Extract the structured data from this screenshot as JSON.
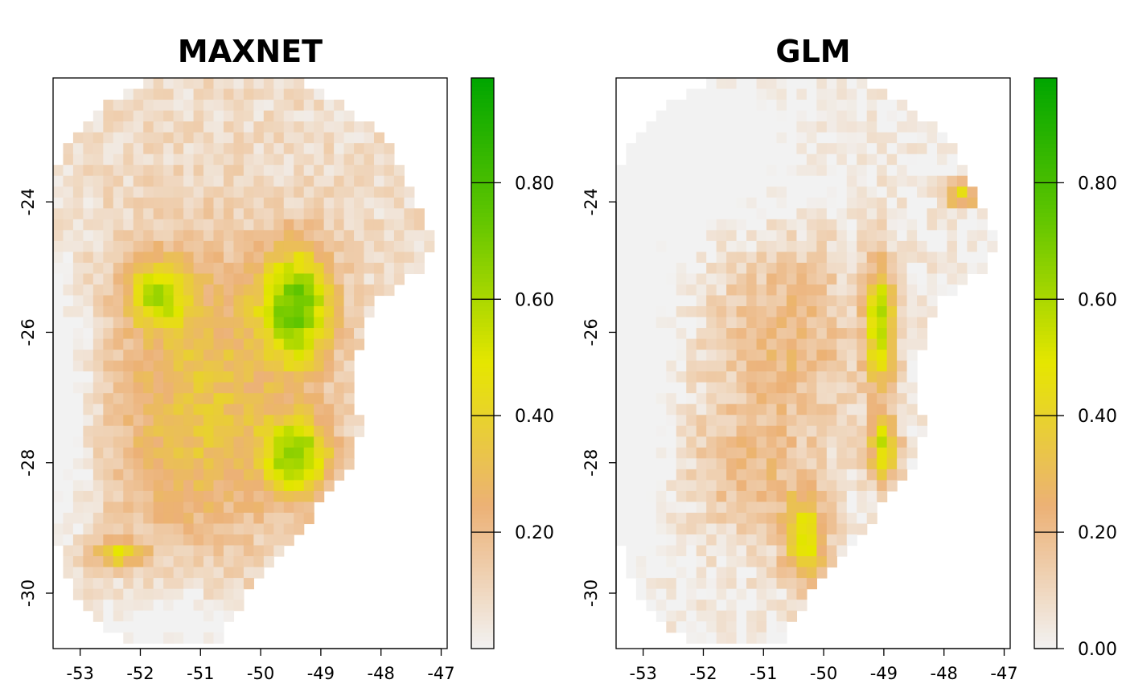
{
  "chart_data": [
    {
      "type": "heatmap",
      "title": "MAXNET",
      "xlabel": "",
      "ylabel": "",
      "xlim": [
        -53.45,
        -46.9
      ],
      "ylim": [
        -30.85,
        -22.1
      ],
      "x_ticks": [
        -53,
        -52,
        -51,
        -50,
        -49,
        -48,
        -47
      ],
      "x_tick_labels": [
        "-53",
        "-52",
        "-51",
        "-50",
        "-49",
        "-48",
        "-47"
      ],
      "y_ticks": [
        -24,
        -26,
        -28,
        -30
      ],
      "y_tick_labels": [
        "-24",
        "-26",
        "-28",
        "-30"
      ],
      "colorbar": {
        "range": [
          0.0,
          0.98
        ],
        "ticks": [
          0.2,
          0.4,
          0.6,
          0.8
        ],
        "tick_labels": [
          "0.20",
          "0.40",
          "0.60",
          "0.80"
        ],
        "colors": [
          "#f2f2f2",
          "#ecb176",
          "#e6e600",
          "#63c600",
          "#00a600"
        ]
      },
      "grid": false,
      "legend": "right"
    },
    {
      "type": "heatmap",
      "title": "GLM",
      "xlabel": "",
      "ylabel": "",
      "xlim": [
        -53.45,
        -46.9
      ],
      "ylim": [
        -30.85,
        -22.1
      ],
      "x_ticks": [
        -53,
        -52,
        -51,
        -50,
        -49,
        -48,
        -47
      ],
      "x_tick_labels": [
        "-53",
        "-52",
        "-51",
        "-50",
        "-49",
        "-48",
        "-47"
      ],
      "y_ticks": [
        -24,
        -26,
        -28,
        -30
      ],
      "y_tick_labels": [
        "-24",
        "-26",
        "-28",
        "-30"
      ],
      "colorbar": {
        "range": [
          0.0,
          0.98
        ],
        "ticks": [
          0.0,
          0.2,
          0.4,
          0.6,
          0.8
        ],
        "tick_labels": [
          "0.00",
          "0.20",
          "0.40",
          "0.60",
          "0.80"
        ],
        "colors": [
          "#f2f2f2",
          "#ecb176",
          "#e6e600",
          "#63c600",
          "#00a600"
        ]
      },
      "grid": false,
      "legend": "right"
    }
  ]
}
